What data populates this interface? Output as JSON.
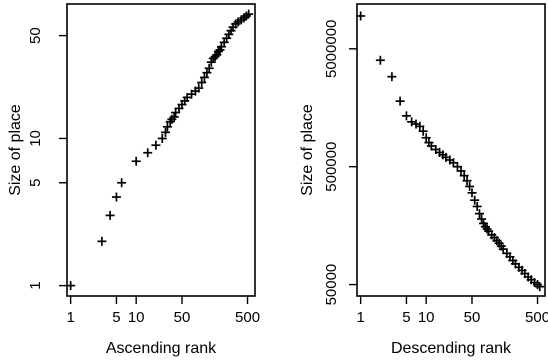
{
  "chart_data": [
    {
      "type": "scatter",
      "xlabel": "Ascending rank",
      "ylabel": "Size of place",
      "xscale": "log",
      "yscale": "log",
      "xlim": [
        0.88,
        650
      ],
      "ylim": [
        0.85,
        82
      ],
      "x_ticks": [
        1,
        5,
        10,
        50,
        500
      ],
      "x_tick_labels": [
        "1",
        "5",
        "10",
        "50",
        "500"
      ],
      "y_ticks": [
        1,
        5,
        10,
        50
      ],
      "y_tick_labels": [
        "1",
        "5",
        "10",
        "50"
      ],
      "marker": "+",
      "x": [
        1,
        3,
        4,
        5,
        6,
        10,
        15,
        20,
        25,
        28,
        30,
        33,
        35,
        38,
        40,
        45,
        50,
        55,
        60,
        70,
        80,
        90,
        100,
        110,
        120,
        130,
        140,
        150,
        160,
        170,
        180,
        190,
        200,
        220,
        240,
        260,
        280,
        300,
        330,
        360,
        400,
        440,
        480,
        520
      ],
      "y": [
        1,
        2,
        3,
        4,
        5,
        7,
        8,
        9,
        10,
        11,
        12,
        13,
        13.5,
        14,
        15,
        16,
        17,
        18,
        19,
        20,
        21,
        22,
        24,
        26,
        28,
        30,
        33,
        35,
        36,
        37,
        39,
        40,
        42,
        45,
        48,
        51,
        54,
        57,
        60,
        62,
        64,
        66,
        68,
        70
      ]
    },
    {
      "type": "scatter",
      "xlabel": "Descending rank",
      "ylabel": "Size of place",
      "xscale": "log",
      "yscale": "log",
      "xlim": [
        0.88,
        650
      ],
      "ylim": [
        40000,
        12000000
      ],
      "x_ticks": [
        1,
        5,
        10,
        50,
        500
      ],
      "x_tick_labels": [
        "1",
        "5",
        "10",
        "50",
        "500"
      ],
      "y_ticks": [
        50000,
        500000,
        5000000
      ],
      "y_tick_labels": [
        "50000",
        "500000",
        "5000000"
      ],
      "marker": "+",
      "x": [
        1,
        2,
        3,
        4,
        5,
        6,
        7,
        8,
        9,
        10,
        11,
        12,
        14,
        16,
        18,
        20,
        23,
        26,
        30,
        34,
        38,
        42,
        46,
        50,
        55,
        60,
        65,
        70,
        75,
        80,
        85,
        90,
        100,
        110,
        120,
        130,
        140,
        150,
        170,
        190,
        210,
        230,
        260,
        290,
        320,
        360,
        400,
        450,
        500,
        540
      ],
      "y": [
        9500000,
        4000000,
        2900000,
        1800000,
        1350000,
        1200000,
        1150000,
        1100000,
        1000000,
        880000,
        800000,
        750000,
        700000,
        660000,
        630000,
        600000,
        570000,
        540000,
        500000,
        460000,
        420000,
        380000,
        340000,
        300000,
        260000,
        230000,
        200000,
        180000,
        165000,
        155000,
        148000,
        142000,
        132000,
        125000,
        118000,
        112000,
        106000,
        100000,
        92000,
        86000,
        80000,
        75000,
        70000,
        66000,
        62000,
        58000,
        55000,
        52000,
        50000,
        48000
      ]
    }
  ]
}
